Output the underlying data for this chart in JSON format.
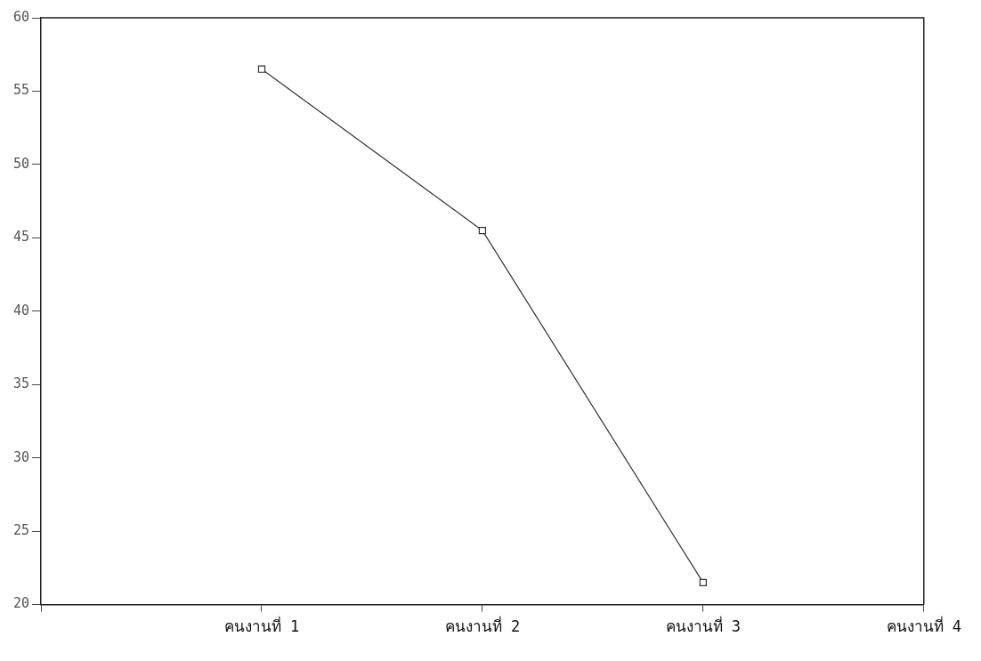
{
  "chart_data": {
    "type": "line",
    "categories": [
      null,
      "คนงานที่ 1",
      "คนงานที่ 2",
      "คนงานที่ 3",
      "คนงานที่ 4"
    ],
    "series": [
      {
        "color": "#333333",
        "values": [
          null,
          56.5,
          45.5,
          21.5,
          null
        ]
      }
    ],
    "ylim": [
      20,
      60
    ],
    "yticks": [
      20,
      25,
      30,
      35,
      40,
      45,
      50,
      55,
      60
    ],
    "grid": false,
    "legend": false,
    "marker": "square",
    "line_style": "solid"
  }
}
